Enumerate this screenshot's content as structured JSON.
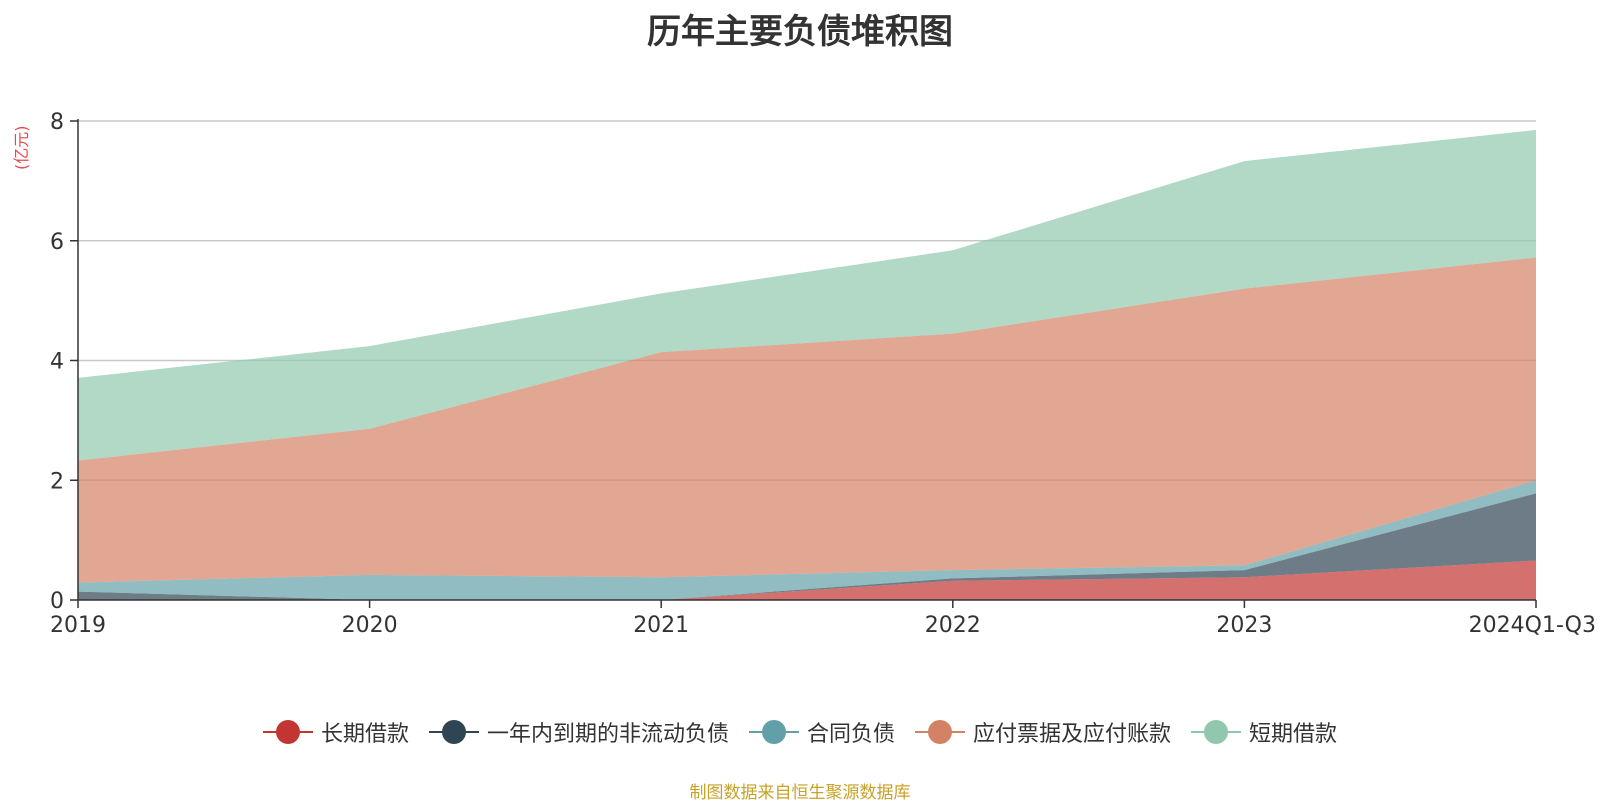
{
  "chart_data": {
    "type": "area",
    "stacked": true,
    "title": "历年主要负债堆积图",
    "ylabel": "(亿元)",
    "categories": [
      "2019",
      "2020",
      "2021",
      "2022",
      "2023",
      "2024Q1-Q3"
    ],
    "y_ticks": [
      "0",
      "2",
      "4",
      "6",
      "8"
    ],
    "ylim": [
      0,
      8
    ],
    "grid": true,
    "legend_position": "bottom",
    "series": [
      {
        "name": "长期借款",
        "color": "#c23531",
        "values": [
          0,
          0,
          0,
          0.32,
          0.38,
          0.66
        ]
      },
      {
        "name": "一年内到期的非流动负债",
        "color": "#2f4554",
        "values": [
          0.14,
          0.0,
          0.0,
          0.04,
          0.12,
          1.12
        ]
      },
      {
        "name": "合同负债",
        "color": "#61a0a8",
        "values": [
          0.15,
          0.42,
          0.38,
          0.14,
          0.08,
          0.22
        ]
      },
      {
        "name": "应付票据及应付账款",
        "color": "#d48265",
        "values": [
          2.04,
          2.44,
          3.76,
          3.95,
          4.62,
          3.72
        ]
      },
      {
        "name": "短期借款",
        "color": "#91c7ae",
        "values": [
          1.38,
          1.38,
          0.98,
          1.39,
          2.13,
          2.13
        ]
      }
    ]
  },
  "footer": "制图数据来自恒生聚源数据库"
}
